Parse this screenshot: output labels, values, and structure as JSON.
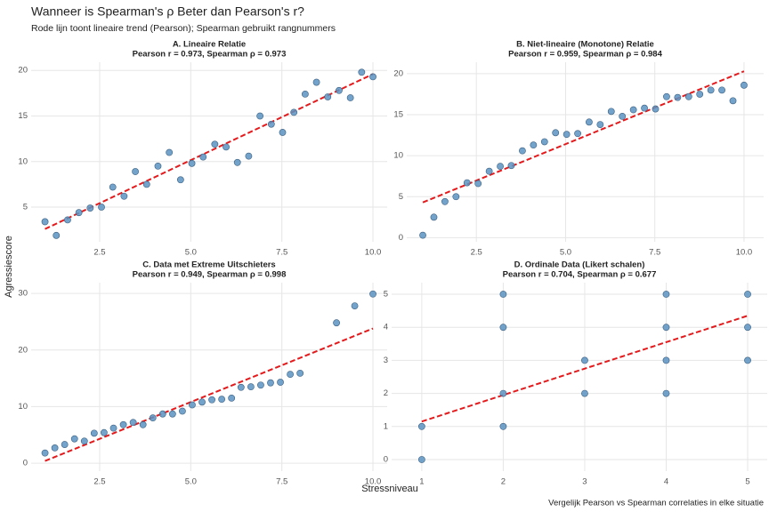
{
  "title": "Wanneer is Spearman's ρ Beter dan Pearson's r?",
  "subtitle": "Rode lijn toont lineaire trend (Pearson); Spearman gebruikt rangnummers",
  "x_label": "Stressniveau",
  "y_label": "Agressiescore",
  "caption": "Vergelijk Pearson vs Spearman correlaties in elke situatie",
  "chart_data": [
    {
      "type": "scatter",
      "title": "A. Lineaire Relatie",
      "subtitle": "Pearson r = 0.973, Spearman ρ = 0.973",
      "x": [
        1.0,
        1.31,
        1.62,
        1.93,
        2.24,
        2.55,
        2.86,
        3.17,
        3.48,
        3.79,
        4.1,
        4.41,
        4.72,
        5.03,
        5.34,
        5.66,
        5.97,
        6.28,
        6.59,
        6.9,
        7.21,
        7.52,
        7.83,
        8.14,
        8.45,
        8.76,
        9.07,
        9.38,
        9.69,
        10.0
      ],
      "values": [
        3.4,
        1.9,
        3.6,
        4.4,
        4.9,
        5.0,
        7.2,
        6.2,
        8.9,
        7.5,
        9.5,
        11.0,
        8.0,
        9.8,
        10.5,
        11.9,
        11.6,
        9.9,
        10.6,
        15.0,
        14.1,
        13.2,
        15.4,
        17.4,
        18.7,
        17.1,
        17.8,
        17.0,
        19.8,
        19.3
      ],
      "color": "#5b93c2",
      "trend": {
        "x": [
          1.0,
          10.0
        ],
        "values": [
          2.6,
          19.6
        ],
        "color": "#e41a1c"
      },
      "xlim": [
        0.62,
        10.39
      ],
      "ylim": [
        1.2,
        20.9
      ],
      "xticks": [
        2.5,
        {
          "value": 5,
          "label": "5.0"
        },
        7.5,
        {
          "value": 10,
          "label": "10.0"
        }
      ],
      "yticks": [
        5,
        10,
        15,
        20
      ],
      "grid": true
    },
    {
      "type": "scatter",
      "title": "B. Niet-lineaire (Monotone) Relatie",
      "subtitle": "Pearson r = 0.959, Spearman ρ = 0.984",
      "x": [
        1.0,
        1.31,
        1.62,
        1.93,
        2.24,
        2.55,
        2.86,
        3.17,
        3.48,
        3.79,
        4.1,
        4.41,
        4.72,
        5.03,
        5.34,
        5.66,
        5.97,
        6.28,
        6.59,
        6.9,
        7.21,
        7.52,
        7.83,
        8.14,
        8.45,
        8.76,
        9.07,
        9.38,
        9.69,
        10.0
      ],
      "values": [
        0.3,
        2.5,
        4.4,
        5.0,
        6.7,
        6.6,
        8.1,
        8.7,
        8.8,
        10.6,
        11.3,
        11.7,
        12.8,
        12.6,
        12.7,
        14.1,
        13.8,
        15.4,
        14.8,
        15.6,
        15.8,
        15.7,
        17.2,
        17.1,
        17.2,
        17.5,
        18.0,
        18.0,
        16.7,
        18.6
      ],
      "color": "#5b93c2",
      "trend": {
        "x": [
          1.0,
          10.0
        ],
        "values": [
          4.3,
          20.3
        ],
        "color": "#e41a1c"
      },
      "xlim": [
        0.55,
        10.55
      ],
      "ylim": [
        -0.5,
        21.4
      ],
      "xticks": [
        2.5,
        {
          "value": 5,
          "label": "5.0"
        },
        7.5,
        {
          "value": 10,
          "label": "10.0"
        }
      ],
      "yticks": [
        0,
        5,
        10,
        15,
        20
      ],
      "grid": true
    },
    {
      "type": "scatter",
      "title": "C. Data met Extreme Uitschieters",
      "subtitle": "Pearson r = 0.949, Spearman ρ = 0.998",
      "x": [
        1.0,
        1.27,
        1.54,
        1.81,
        2.08,
        2.35,
        2.62,
        2.88,
        3.15,
        3.42,
        3.69,
        3.96,
        4.23,
        4.5,
        4.77,
        5.04,
        5.31,
        5.58,
        5.85,
        6.12,
        6.38,
        6.65,
        6.92,
        7.19,
        7.46,
        7.73,
        8.0,
        9.0,
        9.5,
        10.0
      ],
      "values": [
        1.8,
        2.7,
        3.3,
        4.3,
        3.9,
        5.3,
        5.4,
        6.2,
        6.8,
        7.2,
        6.8,
        8.0,
        8.7,
        8.7,
        9.2,
        10.3,
        10.8,
        11.2,
        11.3,
        11.5,
        13.4,
        13.5,
        13.8,
        14.2,
        14.3,
        15.7,
        15.9,
        24.8,
        27.8,
        29.9
      ],
      "color": "#5b93c2",
      "trend": {
        "x": [
          1.0,
          10.0
        ],
        "values": [
          0.4,
          23.8
        ],
        "color": "#e41a1c"
      },
      "xlim": [
        0.62,
        10.39
      ],
      "ylim": [
        -1.4,
        31.9
      ],
      "xticks": [
        2.5,
        {
          "value": 5,
          "label": "5.0"
        },
        7.5,
        {
          "value": 10,
          "label": "10.0"
        }
      ],
      "yticks": [
        0,
        10,
        20,
        30
      ],
      "grid": true
    },
    {
      "type": "scatter",
      "title": "D. Ordinale Data (Likert schalen)",
      "subtitle": "Pearson r = 0.704, Spearman ρ = 0.677",
      "x": [
        1,
        1,
        2,
        2,
        2,
        2,
        3,
        3,
        4,
        4,
        4,
        4,
        5,
        5,
        5
      ],
      "values": [
        0,
        1,
        1,
        2,
        4,
        5,
        2,
        3,
        2,
        3,
        4,
        5,
        3,
        4,
        5
      ],
      "color": "#5b93c2",
      "trend": {
        "x": [
          1,
          5
        ],
        "values": [
          1.15,
          4.35
        ],
        "color": "#e41a1c"
      },
      "xlim": [
        0.63,
        5.24
      ],
      "ylim": [
        -0.35,
        5.35
      ],
      "xticks": [
        1,
        2,
        3,
        4,
        5
      ],
      "yticks": [
        0,
        1,
        2,
        3,
        4,
        5
      ],
      "grid": true
    }
  ]
}
